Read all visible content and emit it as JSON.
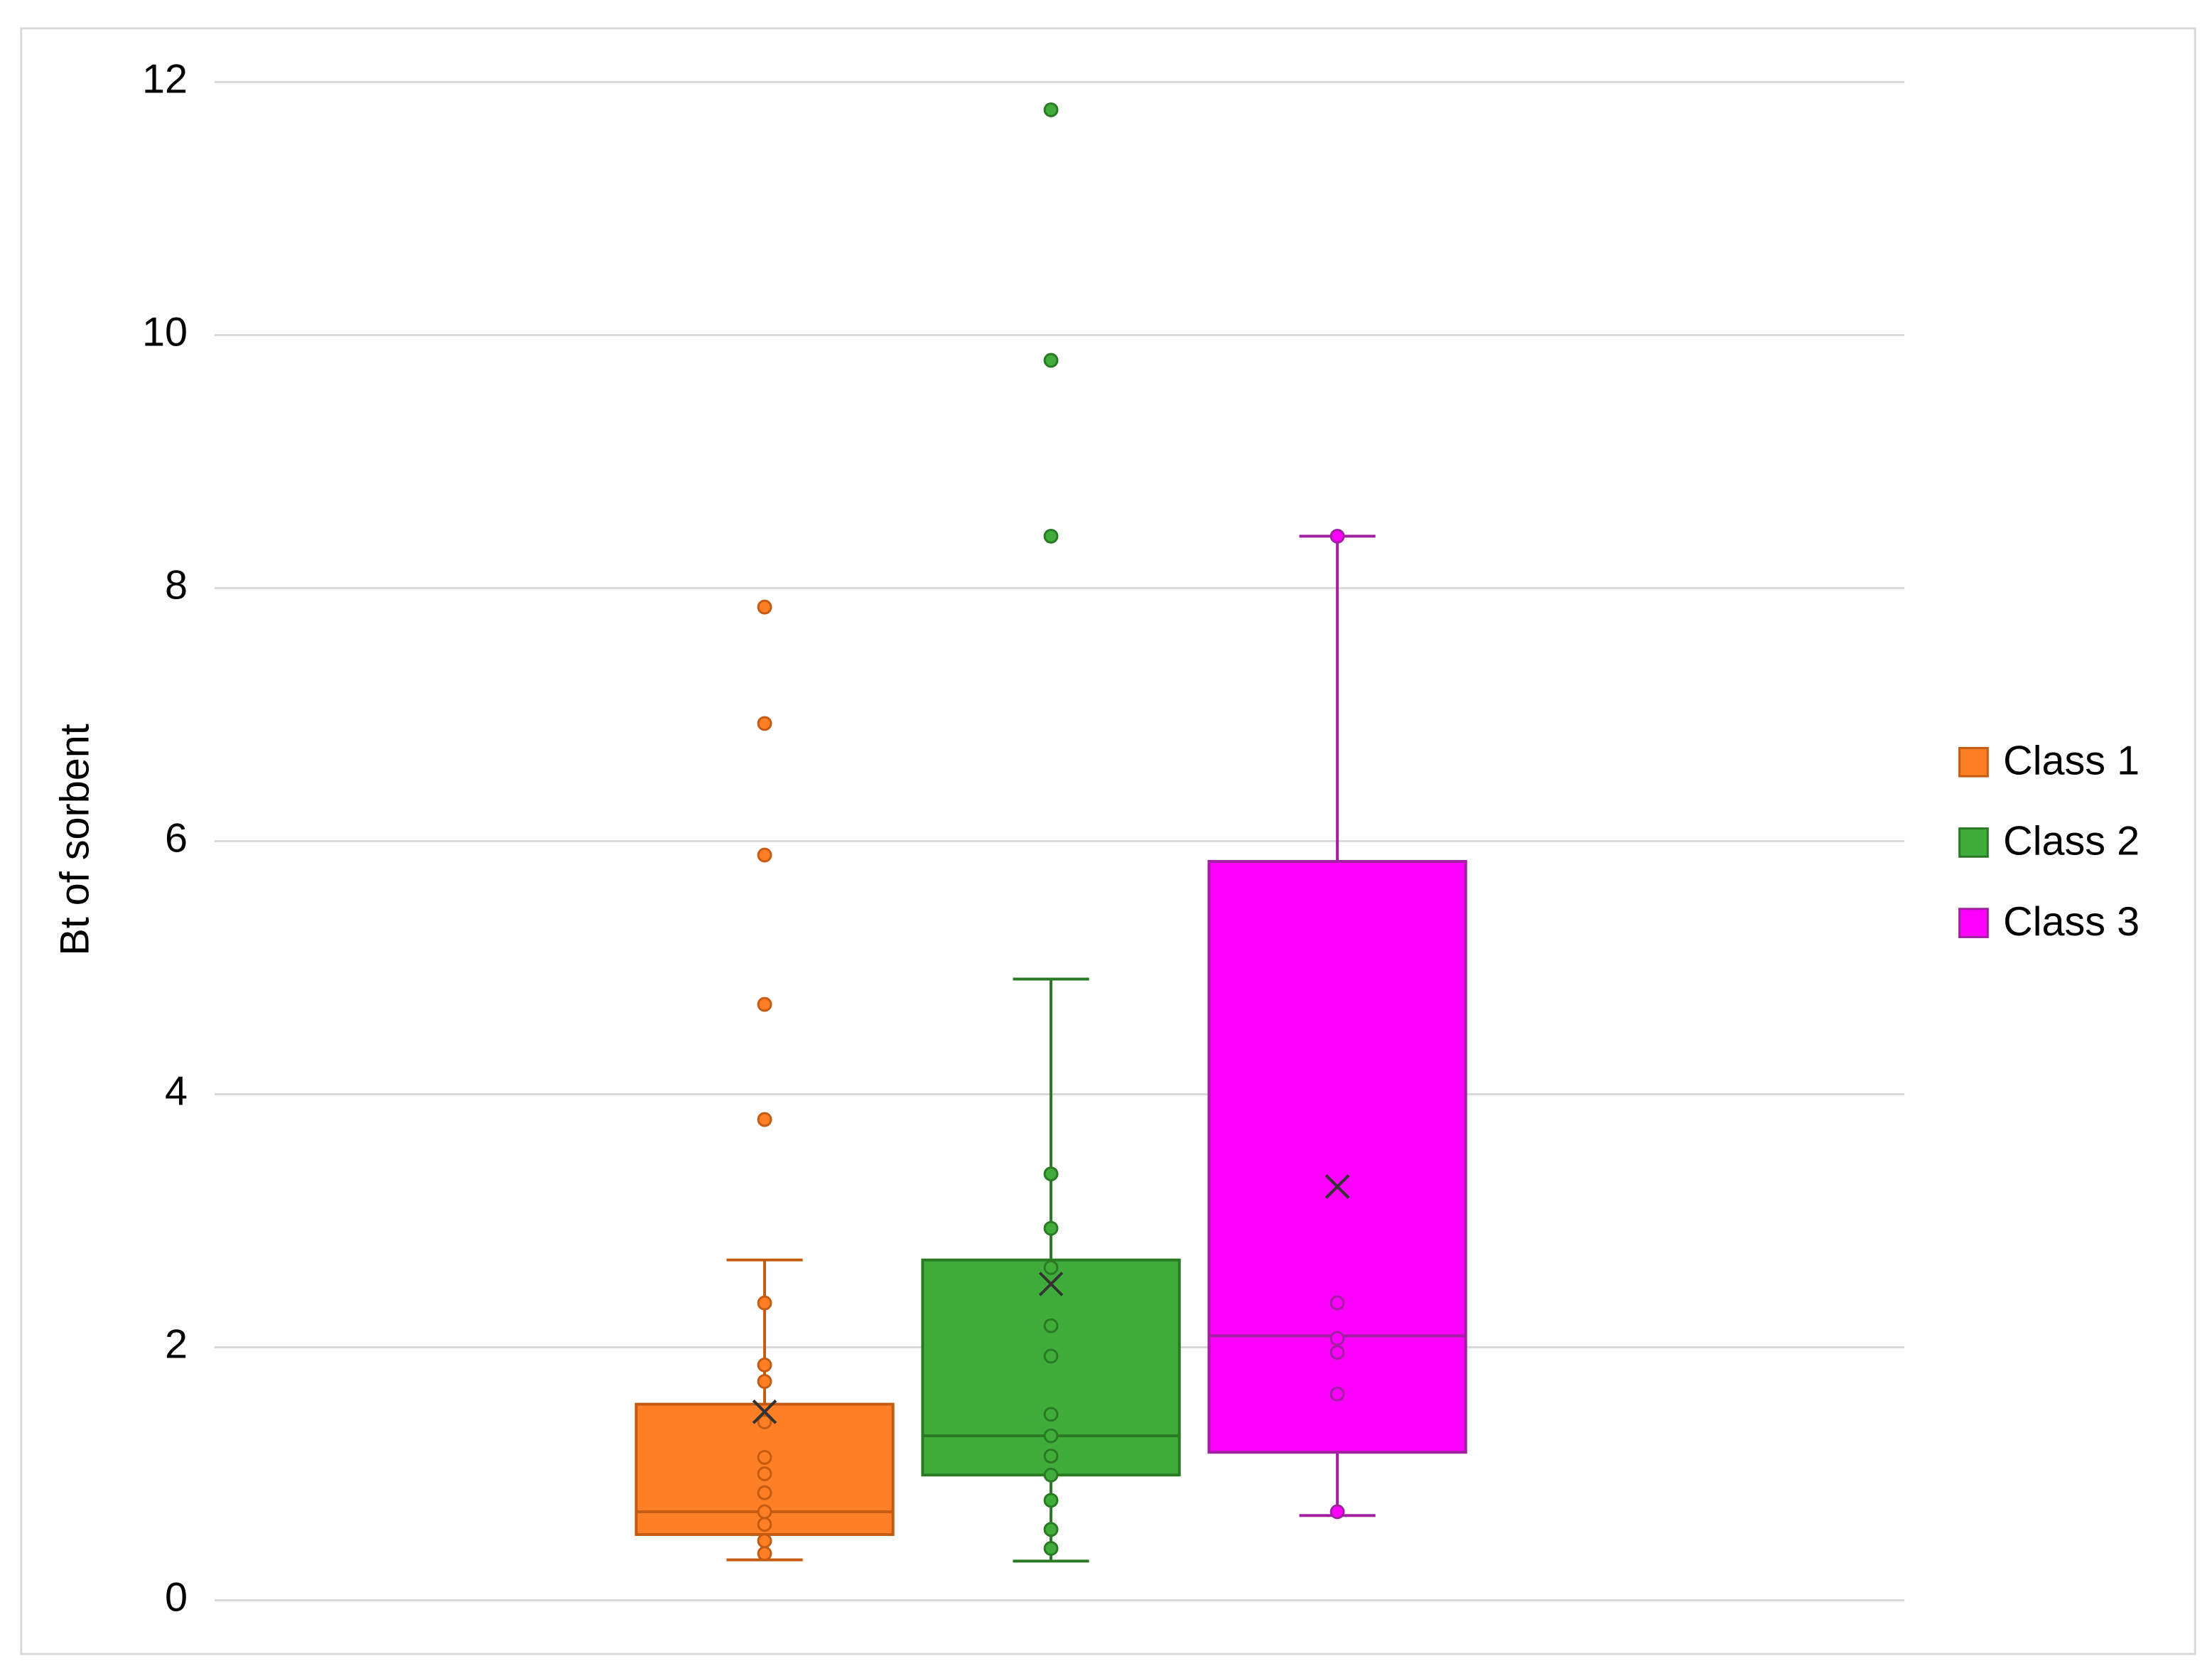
{
  "chart_data": {
    "type": "box",
    "y_label": "Bt of sorbent",
    "ylim": [
      0,
      12
    ],
    "yticks": [
      0,
      2,
      4,
      6,
      8,
      10,
      12
    ],
    "grid": true,
    "legend": "right",
    "series": [
      {
        "name": "Class 1",
        "color": "#ff7f27",
        "edge": "#c55a11",
        "min": 0.32,
        "q1": 0.52,
        "median": 0.7,
        "q3": 1.55,
        "max": 2.69,
        "mean": 1.49,
        "points": [
          7.85,
          6.93,
          5.89,
          4.71,
          3.8,
          2.35,
          1.86,
          1.73,
          1.41,
          1.13,
          1.0,
          0.85,
          0.7,
          0.6,
          0.47,
          0.37
        ]
      },
      {
        "name": "Class 2",
        "color": "#40ad3a",
        "edge": "#2a7a25",
        "min": 0.31,
        "q1": 0.99,
        "median": 1.3,
        "q3": 2.69,
        "max": 4.91,
        "mean": 2.5,
        "points": [
          11.78,
          9.8,
          8.41,
          3.37,
          2.94,
          2.63,
          2.17,
          1.93,
          1.47,
          1.3,
          1.14,
          0.99,
          0.79,
          0.56,
          0.41
        ]
      },
      {
        "name": "Class 3",
        "color": "#ff00ff",
        "edge": "#a020a0",
        "min": 0.67,
        "q1": 1.17,
        "median": 2.09,
        "q3": 5.84,
        "max": 8.41,
        "mean": 3.27,
        "points": [
          8.41,
          2.35,
          2.07,
          1.96,
          1.63,
          0.7
        ]
      }
    ]
  }
}
